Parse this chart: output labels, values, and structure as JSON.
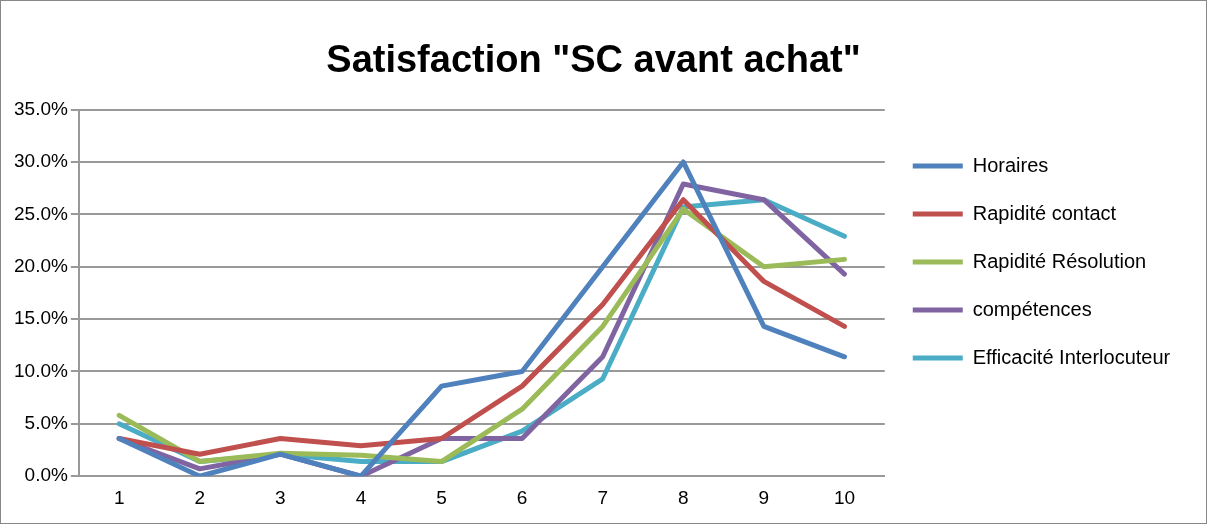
{
  "chart_data": {
    "type": "line",
    "title": "Satisfaction \"SC avant achat\"",
    "categories": [
      "1",
      "2",
      "3",
      "4",
      "5",
      "6",
      "7",
      "8",
      "9",
      "10"
    ],
    "series": [
      {
        "name": "Horaires",
        "color": "#4f81bd",
        "values": [
          3.6,
          0,
          2.1,
          0,
          8.6,
          10.0,
          20.0,
          30.0,
          14.3,
          11.4
        ]
      },
      {
        "name": "Rapidité contact",
        "color": "#c0504d",
        "values": [
          3.6,
          2.1,
          3.6,
          2.9,
          3.6,
          8.6,
          16.4,
          26.4,
          18.6,
          14.3
        ]
      },
      {
        "name": "Rapidité Résolution",
        "color": "#9bbb59",
        "values": [
          5.8,
          1.4,
          2.2,
          2.0,
          1.4,
          6.4,
          14.3,
          25.5,
          20.0,
          20.7
        ]
      },
      {
        "name": "compétences",
        "color": "#8064a2",
        "values": [
          3.6,
          0.7,
          2.1,
          0,
          3.6,
          3.6,
          11.4,
          27.9,
          26.4,
          19.3
        ]
      },
      {
        "name": "Efficacité Interlocuteur",
        "color": "#4bacc6",
        "values": [
          5.0,
          1.4,
          2.1,
          1.4,
          1.4,
          4.3,
          9.3,
          25.7,
          26.4,
          22.9
        ]
      }
    ],
    "ylim": [
      0,
      35
    ],
    "yticks": [
      {
        "value": 0,
        "label": "0.0%"
      },
      {
        "value": 5,
        "label": "5.0%"
      },
      {
        "value": 10,
        "label": "10.0%"
      },
      {
        "value": 15,
        "label": "15.0%"
      },
      {
        "value": 20,
        "label": "20.0%"
      },
      {
        "value": 25,
        "label": "25.0%"
      },
      {
        "value": 30,
        "label": "30.0%"
      },
      {
        "value": 35,
        "label": "35.0%"
      }
    ],
    "grid": "y",
    "legend": "right",
    "marker": "none",
    "line_style": "solid"
  }
}
